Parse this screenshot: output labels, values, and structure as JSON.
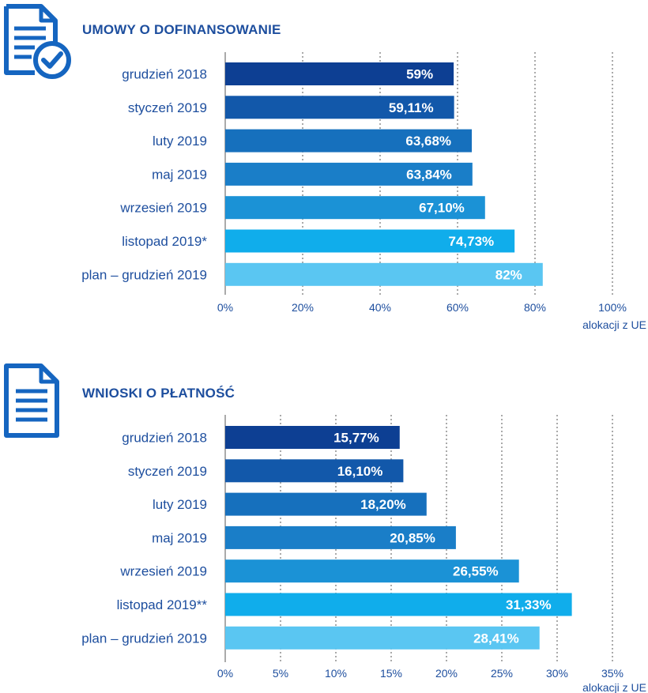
{
  "colors": {
    "title": "#1d4e9e",
    "icon": "#1565c0",
    "grid": "#555555",
    "bars": [
      "#0d3f93",
      "#1258aa",
      "#1670bd",
      "#1a7ec8",
      "#1b92d6",
      "#10adeb",
      "#5ac6f2"
    ]
  },
  "chart_data": [
    {
      "type": "bar",
      "orientation": "horizontal",
      "title": "UMOWY O DOFINANSOWANIE",
      "icon": "contract-check-icon",
      "categories": [
        "grudzień 2018",
        "styczeń 2019",
        "luty 2019",
        "maj 2019",
        "wrzesień 2019",
        "listopad 2019*",
        "plan – grudzień 2019"
      ],
      "values": [
        59,
        59.11,
        63.68,
        63.84,
        67.1,
        74.73,
        82
      ],
      "value_labels": [
        "59%",
        "59,11%",
        "63,68%",
        "63,84%",
        "67,10%",
        "74,73%",
        "82%"
      ],
      "xlim": [
        0,
        100
      ],
      "ticks": [
        0,
        20,
        40,
        60,
        80,
        100
      ],
      "tick_labels": [
        "0%",
        "20%",
        "40%",
        "60%",
        "80%",
        "100%"
      ],
      "xlabel": "alokacji z UE",
      "grid": true
    },
    {
      "type": "bar",
      "orientation": "horizontal",
      "title": "WNIOSKI O PŁATNOŚĆ",
      "icon": "document-icon",
      "categories": [
        "grudzień 2018",
        "styczeń 2019",
        "luty 2019",
        "maj 2019",
        "wrzesień 2019",
        "listopad 2019**",
        "plan – grudzień 2019"
      ],
      "values": [
        15.77,
        16.1,
        18.2,
        20.85,
        26.55,
        31.33,
        28.41
      ],
      "value_labels": [
        "15,77%",
        "16,10%",
        "18,20%",
        "20,85%",
        "26,55%",
        "31,33%",
        "28,41%"
      ],
      "xlim": [
        0,
        35
      ],
      "ticks": [
        0,
        5,
        10,
        15,
        20,
        25,
        30,
        35
      ],
      "tick_labels": [
        "0%",
        "5%",
        "10%",
        "15%",
        "20%",
        "25%",
        "30%",
        "35%"
      ],
      "xlabel": "alokacji z UE",
      "grid": true
    }
  ]
}
